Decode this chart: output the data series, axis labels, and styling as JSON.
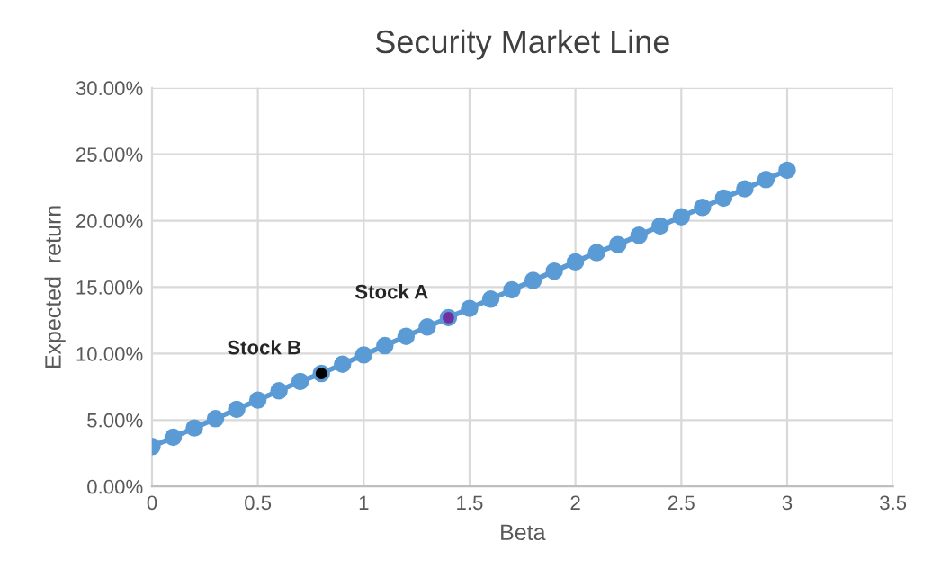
{
  "chart_data": {
    "type": "line",
    "title": "Security Market Line",
    "xlabel": "Beta",
    "ylabel": "Expected  return",
    "x": [
      0,
      0.1,
      0.2,
      0.3,
      0.4,
      0.5,
      0.6,
      0.7,
      0.8,
      0.9,
      1.0,
      1.1,
      1.2,
      1.3,
      1.4,
      1.5,
      1.6,
      1.7,
      1.8,
      1.9,
      2.0,
      2.1,
      2.2,
      2.3,
      2.4,
      2.5,
      2.6,
      2.7,
      2.8,
      2.9,
      3.0
    ],
    "series": [
      {
        "color": "#5b9bd5",
        "marker": "circle",
        "values": [
          0.03,
          0.037,
          0.044,
          0.051,
          0.058,
          0.065,
          0.072,
          0.079,
          0.085,
          0.092,
          0.099,
          0.106,
          0.113,
          0.12,
          0.127,
          0.134,
          0.141,
          0.148,
          0.155,
          0.162,
          0.169,
          0.176,
          0.182,
          0.189,
          0.196,
          0.203,
          0.21,
          0.217,
          0.224,
          0.231,
          0.238
        ]
      },
      {
        "type": "scatter",
        "color": "#7030a0",
        "marker": "circle",
        "x": [
          1.4
        ],
        "values": [
          0.127
        ]
      },
      {
        "type": "scatter",
        "color": "#000000",
        "marker": "circle",
        "x": [
          0.8
        ],
        "values": [
          0.085
        ]
      }
    ],
    "annotations": [
      {
        "text": "Stock A",
        "x": 1.4,
        "y": 0.127
      },
      {
        "text": "Stock B",
        "x": 0.8,
        "y": 0.085
      }
    ],
    "xlim": [
      0,
      3.5
    ],
    "xticks": [
      0,
      0.5,
      1,
      1.5,
      2,
      2.5,
      3,
      3.5
    ],
    "ylim": [
      0,
      0.3
    ],
    "yticks": [
      {
        "value": 0,
        "label": "0.00%"
      },
      {
        "value": 0.05,
        "label": "5.00%"
      },
      {
        "value": 0.1,
        "label": "10.00%"
      },
      {
        "value": 0.15,
        "label": "15.00%"
      },
      {
        "value": 0.2,
        "label": "20.00%"
      },
      {
        "value": 0.25,
        "label": "25.00%"
      },
      {
        "value": 0.3,
        "label": "30.00%"
      }
    ],
    "grid": true,
    "legend": false
  }
}
